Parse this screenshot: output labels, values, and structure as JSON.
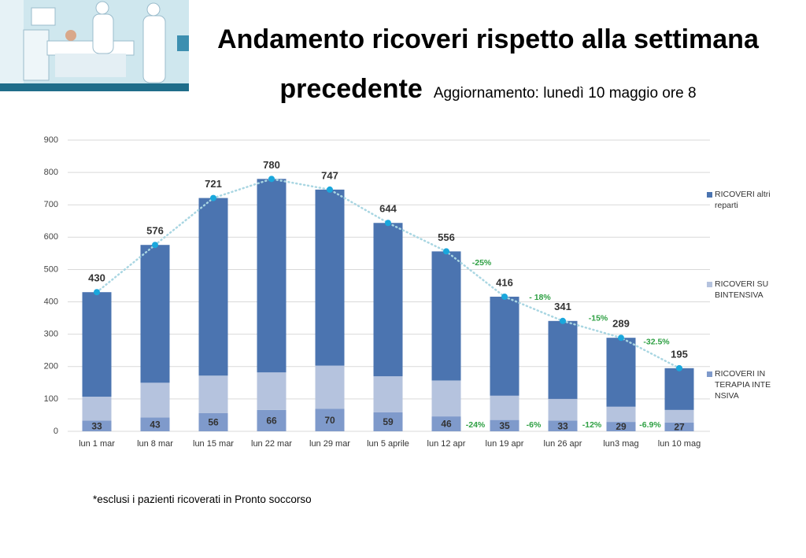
{
  "chart_data": {
    "type": "bar",
    "title": "Andamento ricoveri rispetto alla settimana precedente",
    "subtitle": "Aggiornamento: lunedì 10 maggio ore 8",
    "footnote": "*esclusi i pazienti ricoverati in Pronto soccorso",
    "categories": [
      "lun 1 mar",
      "lun 8 mar",
      "lun 15 mar",
      "lun 22 mar",
      "lun 29 mar",
      "lun 5 aprile",
      "lun 12 apr",
      "lun 19 apr",
      "lun 26 apr",
      "lun3 mag",
      "lun 10 mag"
    ],
    "series": [
      {
        "name": "RICOVERI IN TERAPIA INTENSIVA",
        "color": "#7f9acb",
        "values": [
          33,
          43,
          56,
          66,
          70,
          59,
          46,
          35,
          33,
          29,
          27
        ]
      },
      {
        "name": "RICOVERI SUBINTENSIVA",
        "color": "#b5c3de",
        "values": [
          74,
          107,
          116,
          116,
          133,
          111,
          111,
          75,
          67,
          47,
          39
        ]
      },
      {
        "name": "RICOVERI altri reparti",
        "color": "#4b74b0",
        "values": [
          323,
          426,
          549,
          598,
          544,
          474,
          399,
          306,
          241,
          213,
          129
        ]
      }
    ],
    "totals": [
      430,
      576,
      721,
      780,
      747,
      644,
      556,
      416,
      341,
      289,
      195
    ],
    "totals_line_color": "#a9d6e2",
    "totals_point_color": "#1aa7dc",
    "total_changes": [
      null,
      null,
      null,
      null,
      null,
      null,
      null,
      "-25%",
      "- 18%",
      "-15%",
      "-32.5%"
    ],
    "icu_changes": [
      null,
      null,
      null,
      null,
      null,
      null,
      null,
      "-24%",
      "-6%",
      "-12%",
      "-6.9%"
    ],
    "change_color": "#2ea043",
    "ylim": [
      0,
      900
    ],
    "yticks": [
      0,
      100,
      200,
      300,
      400,
      500,
      600,
      700,
      800,
      900
    ],
    "grid": true,
    "legend": "right"
  }
}
